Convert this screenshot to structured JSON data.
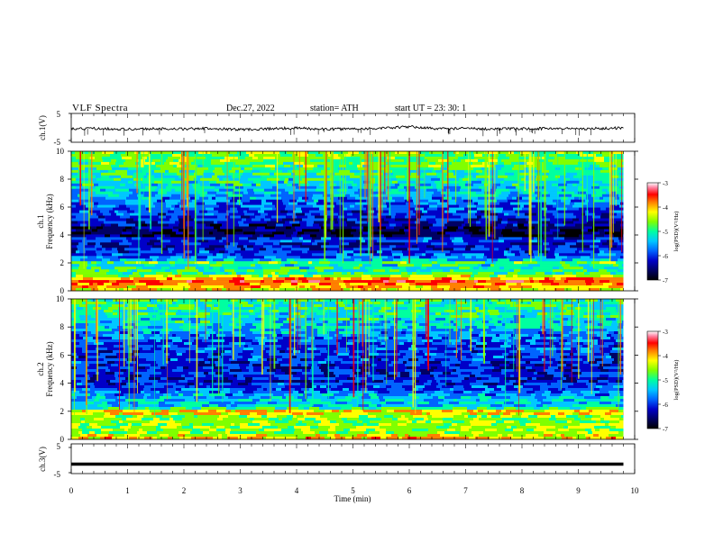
{
  "header": {
    "title": "VLF  Spectra",
    "date": "Dec.27, 2022",
    "station": "station= ATH",
    "start": "start  UT  =    23: 30: 1"
  },
  "chart_data": [
    {
      "type": "line",
      "panel": "ch1-waveform",
      "ylabel": "ch.1(V)",
      "ylim": [
        -5,
        5
      ],
      "yticks": [
        "5",
        "-5"
      ],
      "x": [
        0,
        0.5,
        1,
        1.5,
        2,
        2.5,
        3,
        3.5,
        4,
        4.5,
        5,
        5.5,
        6,
        6.5,
        7,
        7.5,
        8,
        8.5,
        9,
        9.5,
        9.8
      ],
      "values": [
        -0.4,
        -0.2,
        -0.5,
        -0.3,
        -0.4,
        -0.2,
        -0.6,
        -0.3,
        -0.1,
        -0.5,
        -0.3,
        -0.2,
        0.4,
        -0.3,
        -0.2,
        -0.4,
        -0.3,
        -0.2,
        -0.3,
        -0.2,
        0.0
      ]
    },
    {
      "type": "heatmap",
      "panel": "ch1-spectrogram",
      "ylabel": "Frequency  (kHz)",
      "channel_label": "ch.1",
      "ylim": [
        0,
        10
      ],
      "yticks": [
        "0",
        "2",
        "4",
        "6",
        "8",
        "10"
      ],
      "xlim": [
        0,
        10
      ],
      "data_end_min": 9.8,
      "colorbar": {
        "label": "log(PSD)(V²/Hz)",
        "range": [
          -7,
          -3
        ],
        "ticks": [
          "-3",
          "-4",
          "-5",
          "-6",
          "-7"
        ]
      },
      "band_levels": [
        {
          "f": 0.0,
          "v": -4.6
        },
        {
          "f": 0.7,
          "v": -3.8
        },
        {
          "f": 1.2,
          "v": -5.0
        },
        {
          "f": 1.8,
          "v": -5.4
        },
        {
          "f": 2.0,
          "v": -4.9
        },
        {
          "f": 2.3,
          "v": -5.8
        },
        {
          "f": 3.3,
          "v": -6.4
        },
        {
          "f": 3.7,
          "v": -5.9
        },
        {
          "f": 4.0,
          "v": -6.9
        },
        {
          "f": 5.0,
          "v": -6.3
        },
        {
          "f": 6.0,
          "v": -5.9
        },
        {
          "f": 7.0,
          "v": -5.6
        },
        {
          "f": 8.0,
          "v": -5.3
        },
        {
          "f": 9.0,
          "v": -5.0
        },
        {
          "f": 10.0,
          "v": -4.8
        }
      ]
    },
    {
      "type": "heatmap",
      "panel": "ch2-spectrogram",
      "ylabel": "Frequency  (kHz)",
      "channel_label": "ch.2",
      "ylim": [
        0,
        10
      ],
      "yticks": [
        "0",
        "2",
        "4",
        "6",
        "8",
        "10"
      ],
      "xlim": [
        0,
        10
      ],
      "data_end_min": 9.8,
      "colorbar": {
        "label": "log(PSD)(V²/Hz)",
        "range": [
          -7,
          -3
        ],
        "ticks": [
          "-3",
          "-4",
          "-5",
          "-6",
          "-7"
        ]
      },
      "band_levels": [
        {
          "f": 0.0,
          "v": -4.2
        },
        {
          "f": 0.5,
          "v": -4.8
        },
        {
          "f": 1.0,
          "v": -4.7
        },
        {
          "f": 1.5,
          "v": -4.9
        },
        {
          "f": 2.0,
          "v": -4.3
        },
        {
          "f": 2.3,
          "v": -5.5
        },
        {
          "f": 3.0,
          "v": -5.6
        },
        {
          "f": 3.5,
          "v": -5.9
        },
        {
          "f": 4.0,
          "v": -6.2
        },
        {
          "f": 5.0,
          "v": -6.2
        },
        {
          "f": 6.0,
          "v": -6.1
        },
        {
          "f": 7.0,
          "v": -6.0
        },
        {
          "f": 8.0,
          "v": -5.5
        },
        {
          "f": 9.0,
          "v": -5.3
        },
        {
          "f": 10.0,
          "v": -5.1
        }
      ]
    },
    {
      "type": "line",
      "panel": "ch3-waveform",
      "ylabel": "ch.3(V)",
      "ylim": [
        -5,
        5
      ],
      "yticks": [
        "5",
        "-5"
      ],
      "x": [
        0,
        9.8
      ],
      "values": [
        -1.8,
        -1.8
      ]
    }
  ],
  "time_axis": {
    "xlabel": "Time  (min)",
    "xlim": [
      0,
      10
    ],
    "ticks": [
      "0",
      "1",
      "2",
      "3",
      "4",
      "5",
      "6",
      "7",
      "8",
      "9",
      "10"
    ]
  },
  "colors": {
    "colormap": [
      "#000000",
      "#000064",
      "#0000c8",
      "#0064ff",
      "#00c8ff",
      "#00ffa0",
      "#80ff00",
      "#ffff00",
      "#ff8000",
      "#ff0000",
      "#ff80a0",
      "#ffffff"
    ]
  }
}
